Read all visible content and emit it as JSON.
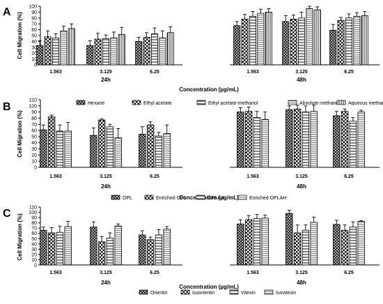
{
  "chart_data": [
    {
      "type": "bar",
      "panel_label": "A",
      "ylabel": "Cell Migration (%)",
      "xlabel": "Concentration (µg/mL)",
      "ylim": [
        0,
        100
      ],
      "yticks": [
        0,
        10,
        20,
        30,
        40,
        50,
        60,
        70,
        80,
        90,
        100
      ],
      "groups": [
        "24h",
        "48h"
      ],
      "categories": [
        "1.563",
        "3.125",
        "6.25",
        "1.563",
        "3.125",
        "6.25"
      ],
      "series": [
        {
          "name": "Hexane",
          "values": [
            33,
            33,
            40,
            67,
            74,
            59
          ],
          "errors": [
            8,
            8,
            7,
            7,
            10,
            10
          ]
        },
        {
          "name": "Ethyl acetate",
          "values": [
            48,
            44,
            47,
            78,
            78,
            76
          ],
          "errors": [
            10,
            10,
            8,
            8,
            7,
            5
          ]
        },
        {
          "name": "Ethyl acetate-methanol",
          "values": [
            46,
            45,
            53,
            83,
            80,
            80
          ],
          "errors": [
            7,
            6,
            10,
            8,
            10,
            7
          ]
        },
        {
          "name": "Absolute methanol",
          "values": [
            58,
            46,
            46,
            88,
            96,
            83
          ],
          "errors": [
            8,
            10,
            12,
            7,
            4,
            6
          ]
        },
        {
          "name": "Aqueous methanol",
          "values": [
            62,
            52,
            55,
            90,
            94,
            84
          ],
          "errors": [
            8,
            12,
            10,
            6,
            5,
            7
          ]
        }
      ]
    },
    {
      "type": "bar",
      "panel_label": "B",
      "ylabel": "Cell Migration (%)",
      "xlabel": "Concentration (µg/mL)",
      "ylim": [
        0,
        110
      ],
      "yticks": [
        0,
        10,
        20,
        30,
        40,
        50,
        60,
        70,
        80,
        90,
        100,
        110
      ],
      "groups": [
        "24h",
        "48h"
      ],
      "categories": [
        "1.563",
        "3.125",
        "6.25",
        "1.563",
        "3.125",
        "6.25"
      ],
      "series": [
        {
          "name": "OPL",
          "values": [
            61,
            52,
            54,
            90,
            94,
            84
          ],
          "errors": [
            8,
            12,
            12,
            7,
            6,
            7
          ]
        },
        {
          "name": "Enriched OPL",
          "values": [
            82,
            77,
            69,
            91,
            95,
            91
          ],
          "errors": [
            3,
            2,
            5,
            7,
            6,
            4
          ]
        },
        {
          "name": "OPLAH",
          "values": [
            59,
            66,
            51,
            81,
            90,
            75
          ],
          "errors": [
            10,
            4,
            6,
            10,
            10,
            6
          ]
        },
        {
          "name": "Enriched OPLAH",
          "values": [
            59,
            48,
            55,
            78,
            91,
            90
          ],
          "errors": [
            14,
            15,
            14,
            12,
            10,
            3
          ]
        }
      ]
    },
    {
      "type": "bar",
      "panel_label": "C",
      "ylabel": "Cell Migration (%)",
      "xlabel": "Concentration (µg/mL)",
      "ylim": [
        0,
        110
      ],
      "yticks": [
        0,
        10,
        20,
        30,
        40,
        50,
        60,
        70,
        80,
        90,
        100,
        110
      ],
      "groups": [
        "24h",
        "48h"
      ],
      "categories": [
        "1.563",
        "3.125",
        "6.25",
        "1.563",
        "3.125",
        "6.25"
      ],
      "series": [
        {
          "name": "Orientin",
          "values": [
            66,
            72,
            57,
            78,
            98,
            77
          ],
          "errors": [
            6,
            10,
            8,
            8,
            6,
            8
          ]
        },
        {
          "name": "Isoorientin",
          "values": [
            61,
            44,
            48,
            86,
            61,
            66
          ],
          "errors": [
            10,
            10,
            5,
            8,
            15,
            10
          ]
        },
        {
          "name": "Vitexin",
          "values": [
            62,
            51,
            57,
            88,
            66,
            72
          ],
          "errors": [
            12,
            10,
            10,
            8,
            10,
            10
          ]
        },
        {
          "name": "Isovitexin",
          "values": [
            73,
            74,
            68,
            89,
            81,
            83
          ],
          "errors": [
            10,
            4,
            5,
            6,
            10,
            1
          ]
        }
      ]
    }
  ]
}
